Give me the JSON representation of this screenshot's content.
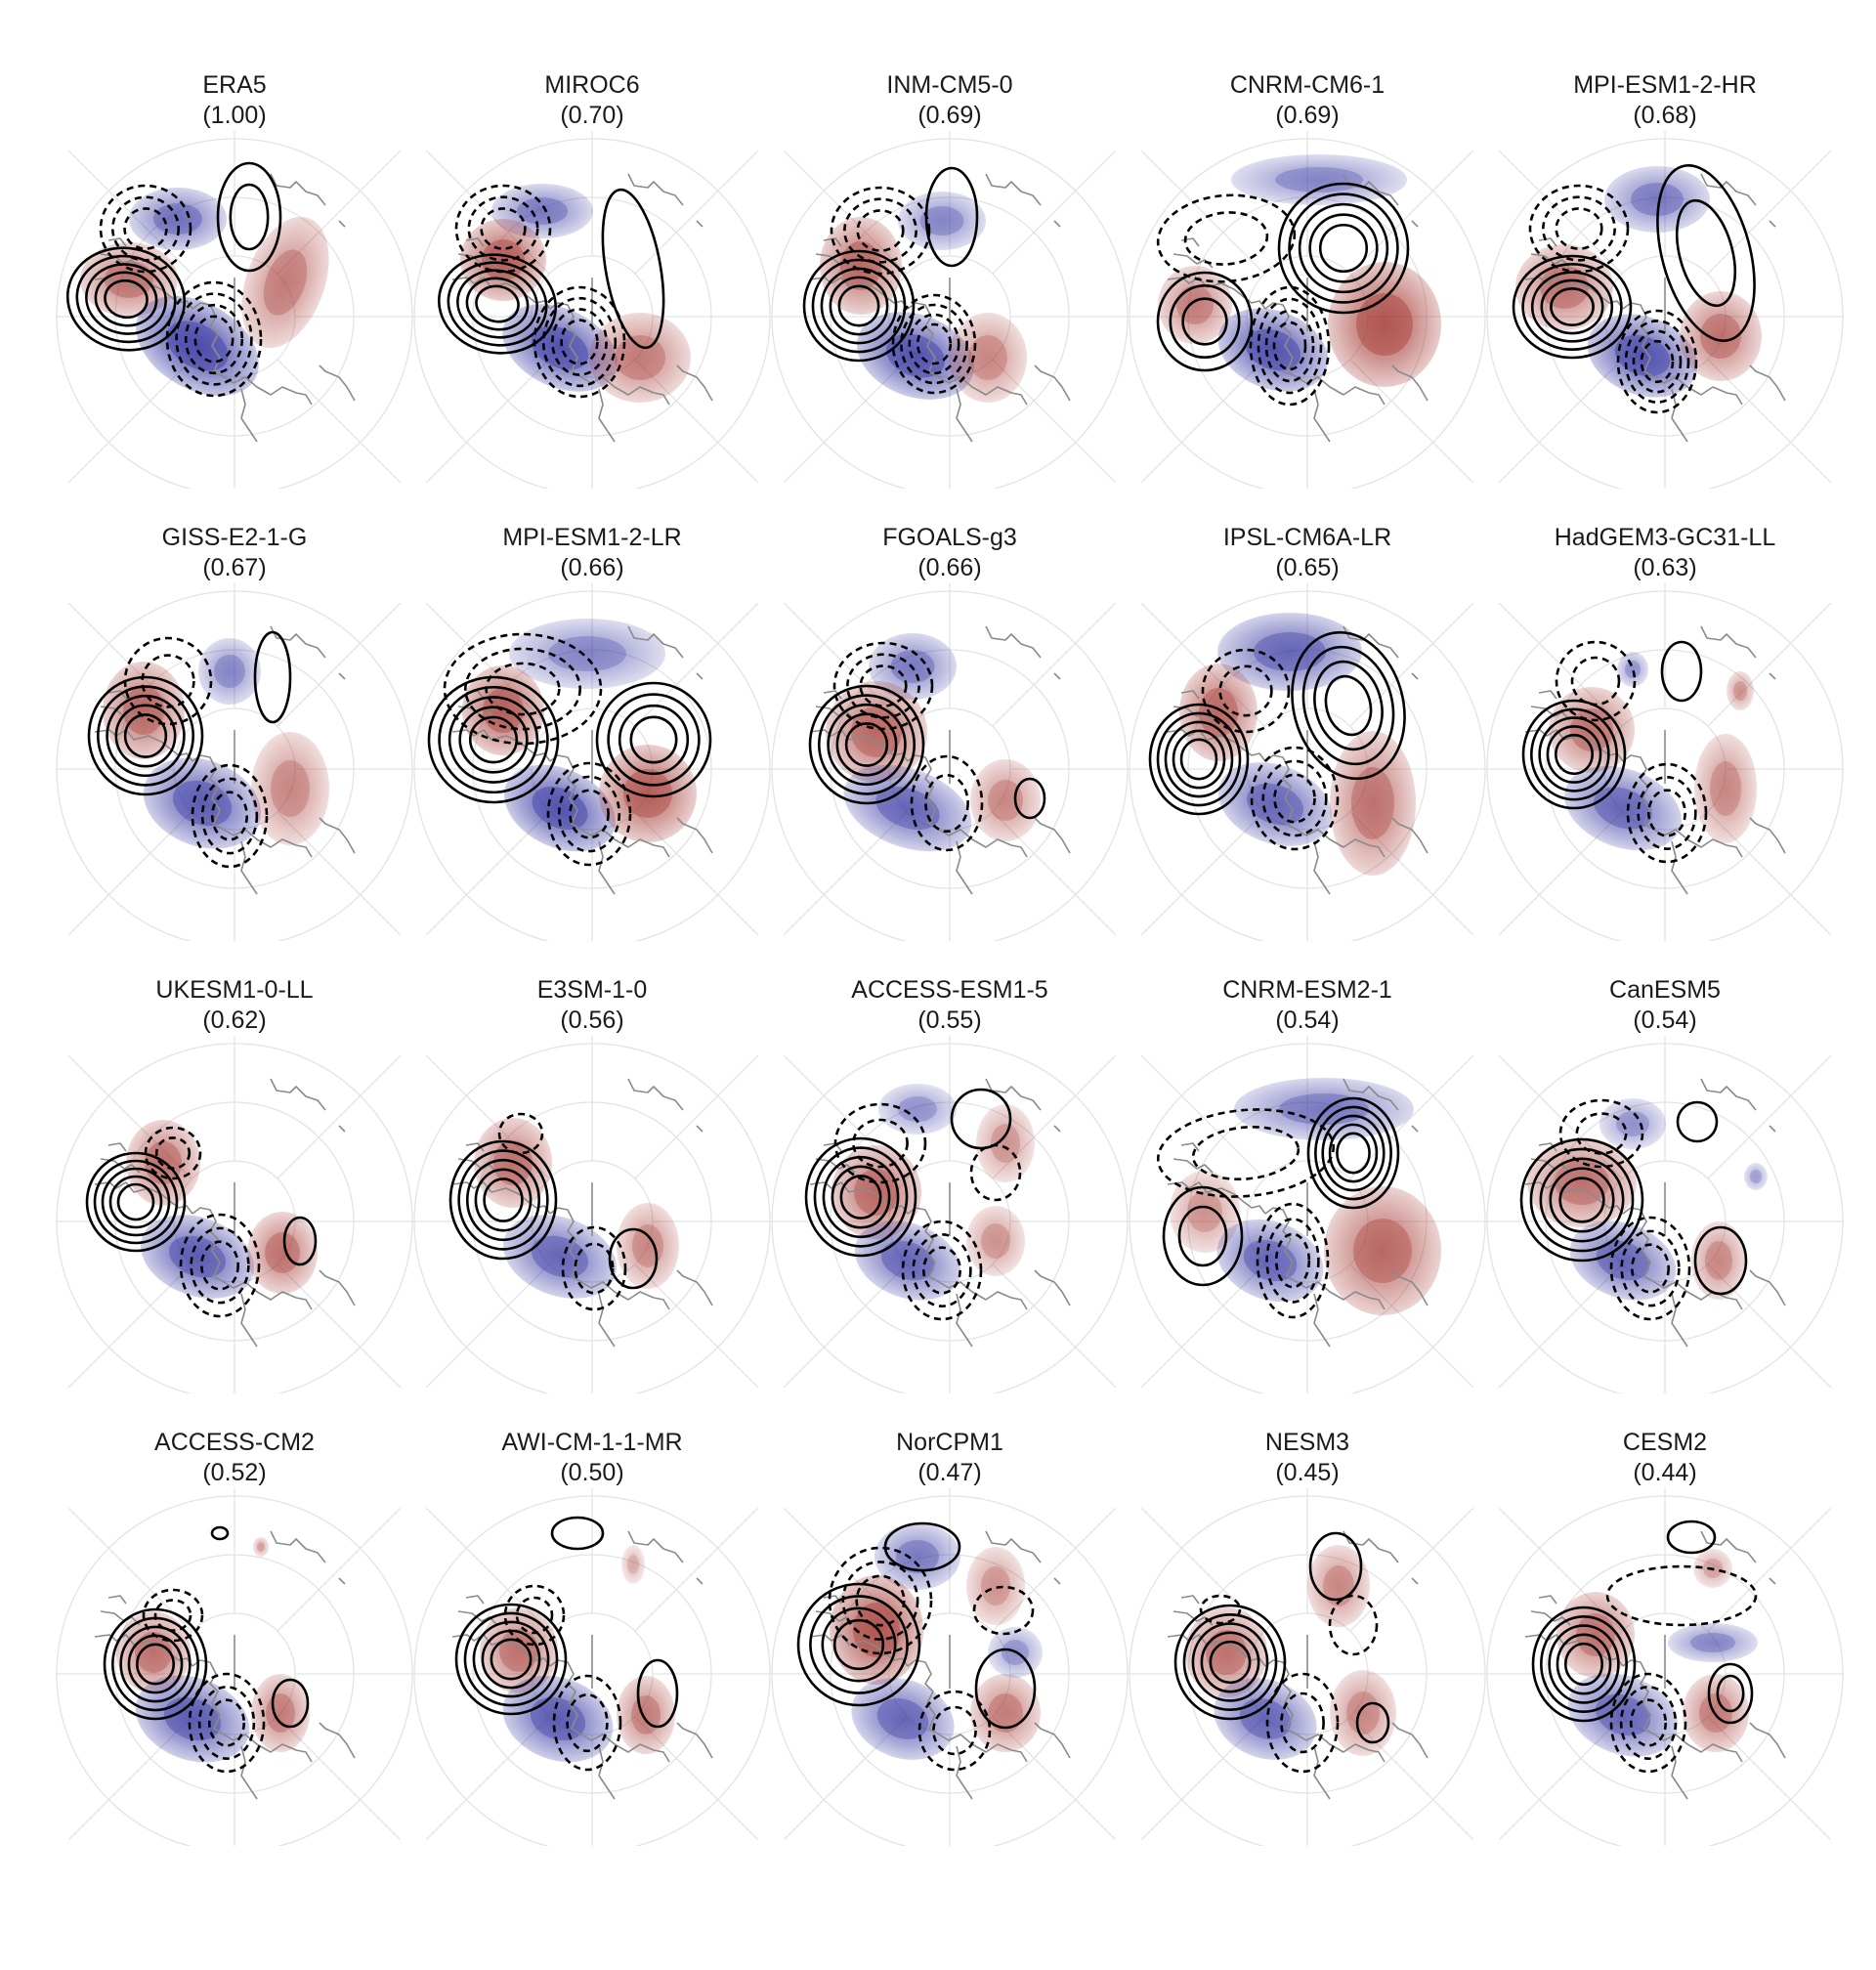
{
  "figure": {
    "panels": [
      {
        "model": "ERA5",
        "score": "(1.00)"
      },
      {
        "model": "MIROC6",
        "score": "(0.70)"
      },
      {
        "model": "INM-CM5-0",
        "score": "(0.69)"
      },
      {
        "model": "CNRM-CM6-1",
        "score": "(0.69)"
      },
      {
        "model": "MPI-ESM1-2-HR",
        "score": "(0.68)"
      },
      {
        "model": "GISS-E2-1-G",
        "score": "(0.67)"
      },
      {
        "model": "MPI-ESM1-2-LR",
        "score": "(0.66)"
      },
      {
        "model": "FGOALS-g3",
        "score": "(0.66)"
      },
      {
        "model": "IPSL-CM6A-LR",
        "score": "(0.65)"
      },
      {
        "model": "HadGEM3-GC31-LL",
        "score": "(0.63)"
      },
      {
        "model": "UKESM1-0-LL",
        "score": "(0.62)"
      },
      {
        "model": "E3SM-1-0",
        "score": "(0.56)"
      },
      {
        "model": "ACCESS-ESM1-5",
        "score": "(0.55)"
      },
      {
        "model": "CNRM-ESM2-1",
        "score": "(0.54)"
      },
      {
        "model": "CanESM5",
        "score": "(0.54)"
      },
      {
        "model": "ACCESS-CM2",
        "score": "(0.52)"
      },
      {
        "model": "AWI-CM-1-1-MR",
        "score": "(0.50)"
      },
      {
        "model": "NorCPM1",
        "score": "(0.47)"
      },
      {
        "model": "NESM3",
        "score": "(0.45)"
      },
      {
        "model": "CESM2",
        "score": "(0.44)"
      }
    ],
    "colors": {
      "positive_fill": "#a0302a",
      "negative_fill": "#2d2d9e",
      "contour": "#000000",
      "coastline": "#8a8a8a",
      "graticule": "#e3e3e3"
    }
  }
}
